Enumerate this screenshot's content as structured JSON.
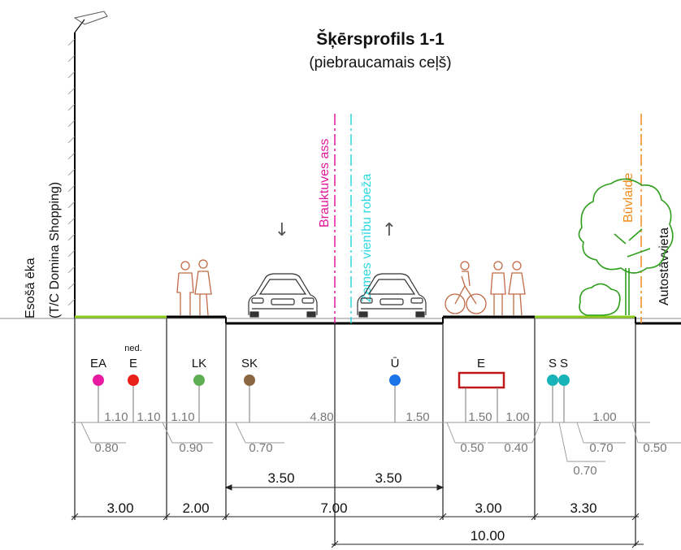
{
  "title": "Šķērsprofils 1-1",
  "subtitle": "(piebraucamais ceļš)",
  "building": {
    "line1": "Esošā ēka",
    "line2": "(T/C Domina Shopping)"
  },
  "axis_labels": {
    "carriageway_axis": "Brauktuves ass",
    "land_boundary": "Zemes vienību robeža",
    "building_line": "Būvlaide",
    "parking": "Autostāvvieta"
  },
  "colors": {
    "axis_magenta": "#e0189a",
    "boundary_cyan": "#2ed8e0",
    "building_line_orange": "#f08a1c",
    "green_strip": "#8ccc1c",
    "person_brown": "#c06a45",
    "tree_green": "#2f9e1d"
  },
  "utilities": [
    {
      "label": "EA",
      "prefix": "",
      "color": "#e81aa0",
      "shape": "circle"
    },
    {
      "label": "E",
      "prefix": "ned.",
      "color": "#e8221a",
      "shape": "circle"
    },
    {
      "label": "LK",
      "prefix": "",
      "color": "#5fae55",
      "shape": "circle"
    },
    {
      "label": "SK",
      "prefix": "",
      "color": "#8a6640",
      "shape": "circle"
    },
    {
      "label": "Ū",
      "prefix": "",
      "color": "#1a73e8",
      "shape": "circle"
    },
    {
      "label": "E",
      "prefix": "",
      "color": "#c01818",
      "shape": "rect"
    },
    {
      "label": "S",
      "prefix": "",
      "color": "#17b3b8",
      "shape": "circle"
    },
    {
      "label": "S",
      "prefix": "",
      "color": "#17b3b8",
      "shape": "circle"
    }
  ],
  "offset_dims_row1": [
    "1.10",
    "1.10",
    "1.10",
    "4.80",
    "1.50",
    "1.50",
    "1.00",
    "1.00"
  ],
  "offset_dims_row2": [
    "0.80",
    "0.90",
    "0.70",
    "0.50",
    "0.40",
    "0.70",
    "0.50"
  ],
  "offset_dims_row3": [
    "0.70"
  ],
  "lane_dims": [
    "3.50",
    "3.50"
  ],
  "segment_dims": [
    "3.00",
    "2.00",
    "7.00",
    "3.00",
    "3.30"
  ],
  "total_dim": "10.00",
  "arrows": {
    "left": "↓",
    "right": "↑"
  }
}
